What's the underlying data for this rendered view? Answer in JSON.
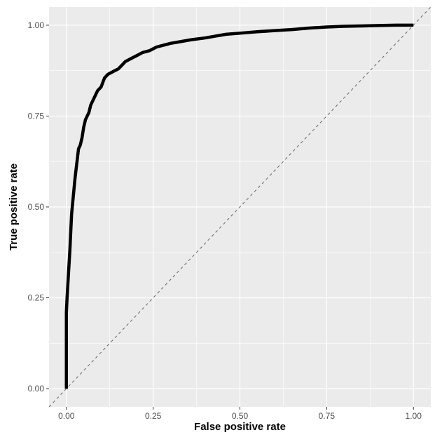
{
  "chart_data": {
    "type": "line",
    "title": "",
    "xlabel": "False positive rate",
    "ylabel": "True positive rate",
    "xlim": [
      -0.05,
      1.05
    ],
    "ylim": [
      -0.05,
      1.05
    ],
    "grid": true,
    "x_ticks": [
      0,
      0.25,
      0.5,
      0.75,
      1
    ],
    "x_tick_labels": [
      "0.00",
      "0.25",
      "0.50",
      "0.75",
      "1.00"
    ],
    "y_ticks": [
      0,
      0.25,
      0.5,
      0.75,
      1
    ],
    "y_tick_labels": [
      "0.00",
      "0.25",
      "0.50",
      "0.75",
      "1.00"
    ],
    "series": [
      {
        "style": "solid",
        "color": "#000000",
        "x": [
          0.0,
          0.0,
          0.002,
          0.005,
          0.01,
          0.015,
          0.02,
          0.025,
          0.03,
          0.035,
          0.04,
          0.045,
          0.05,
          0.055,
          0.06,
          0.065,
          0.07,
          0.08,
          0.09,
          0.1,
          0.11,
          0.115,
          0.12,
          0.13,
          0.14,
          0.15,
          0.16,
          0.17,
          0.18,
          0.19,
          0.2,
          0.22,
          0.24,
          0.26,
          0.28,
          0.3,
          0.33,
          0.36,
          0.4,
          0.43,
          0.46,
          0.5,
          0.55,
          0.6,
          0.65,
          0.7,
          0.75,
          0.8,
          0.85,
          0.9,
          0.95,
          1.0
        ],
        "y": [
          0.0,
          0.21,
          0.25,
          0.3,
          0.38,
          0.48,
          0.53,
          0.58,
          0.62,
          0.66,
          0.67,
          0.69,
          0.72,
          0.74,
          0.75,
          0.76,
          0.78,
          0.8,
          0.82,
          0.83,
          0.855,
          0.86,
          0.865,
          0.87,
          0.875,
          0.88,
          0.89,
          0.9,
          0.905,
          0.91,
          0.915,
          0.925,
          0.93,
          0.94,
          0.945,
          0.95,
          0.955,
          0.96,
          0.965,
          0.97,
          0.975,
          0.978,
          0.982,
          0.985,
          0.988,
          0.992,
          0.995,
          0.997,
          0.998,
          0.999,
          1.0,
          1.0
        ]
      },
      {
        "style": "dashed",
        "color": "#666666",
        "x": [
          -0.05,
          1.05
        ],
        "y": [
          -0.05,
          1.05
        ]
      }
    ]
  }
}
